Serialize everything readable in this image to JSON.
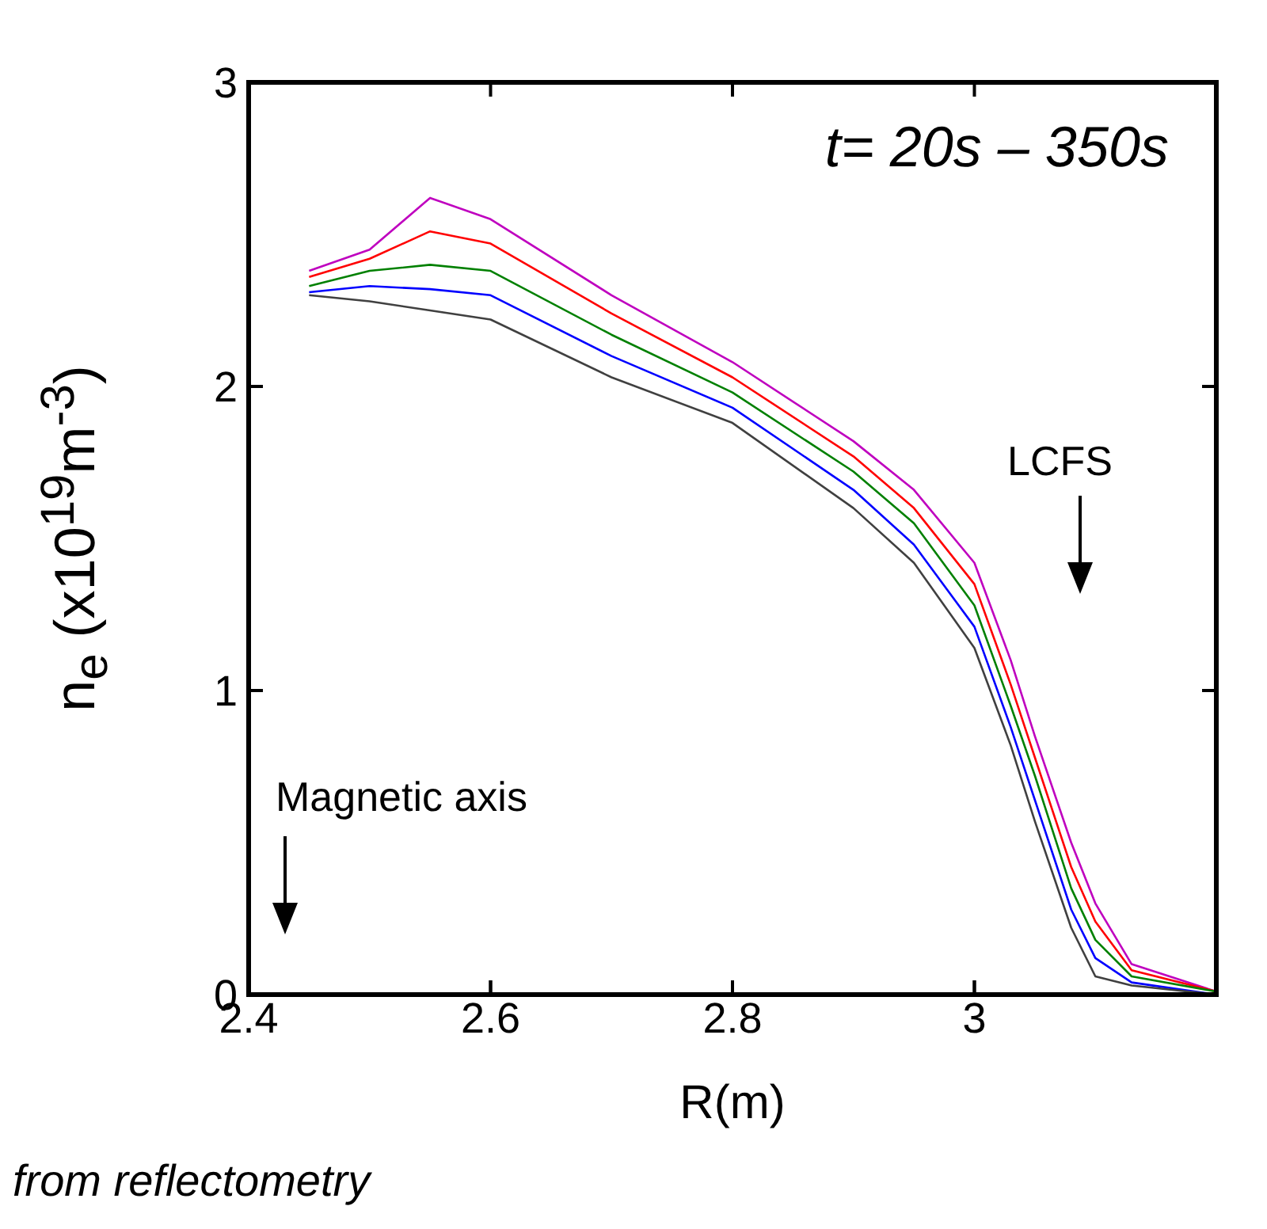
{
  "chart_data": {
    "type": "line",
    "xlabel": "R(m)",
    "ylabel": "n$_{e}$ (x10$^{19}$m$^{-3}$)",
    "x": [
      2.45,
      2.5,
      2.55,
      2.6,
      2.7,
      2.8,
      2.9,
      2.95,
      3.0,
      3.03,
      3.05,
      3.08,
      3.1,
      3.13,
      3.2
    ],
    "series": [
      {
        "color": "#bf00bf",
        "values": [
          2.38,
          2.45,
          2.62,
          2.55,
          2.3,
          2.08,
          1.82,
          1.66,
          1.42,
          1.1,
          0.85,
          0.5,
          0.3,
          0.1,
          0.01
        ]
      },
      {
        "color": "#ff0000",
        "values": [
          2.36,
          2.42,
          2.51,
          2.47,
          2.24,
          2.03,
          1.77,
          1.6,
          1.35,
          1.02,
          0.78,
          0.42,
          0.24,
          0.08,
          0.01
        ]
      },
      {
        "color": "#008000",
        "values": [
          2.33,
          2.38,
          2.4,
          2.38,
          2.17,
          1.98,
          1.72,
          1.55,
          1.28,
          0.95,
          0.72,
          0.35,
          0.18,
          0.06,
          0.01
        ]
      },
      {
        "color": "#0000ff",
        "values": [
          2.31,
          2.33,
          2.32,
          2.3,
          2.1,
          1.93,
          1.66,
          1.48,
          1.21,
          0.88,
          0.64,
          0.28,
          0.12,
          0.04,
          0.0
        ]
      },
      {
        "color": "#404040",
        "values": [
          2.3,
          2.28,
          2.25,
          2.22,
          2.03,
          1.88,
          1.6,
          1.42,
          1.14,
          0.82,
          0.57,
          0.22,
          0.06,
          0.03,
          0.0
        ]
      }
    ],
    "xlim": [
      2.4,
      3.2
    ],
    "xticks": [
      2.4,
      2.6,
      2.8,
      3
    ],
    "ylim": [
      0,
      3
    ],
    "yticks": [
      0,
      1,
      2,
      3
    ],
    "annotations": [
      "t= 20s – 350s",
      "LCFS",
      "Magnetic axis",
      "from reflectometry"
    ]
  }
}
